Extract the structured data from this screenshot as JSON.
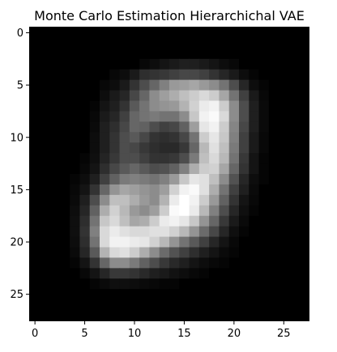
{
  "chart_data": {
    "type": "heatmap",
    "title": "Monte Carlo Estimation Hierarchichal VAE",
    "colormap": "gray",
    "value_range": [
      0,
      1
    ],
    "grid": false,
    "xlim": [
      -0.5,
      27.5
    ],
    "ylim": [
      27.5,
      -0.5
    ],
    "xticks": [
      0,
      5,
      10,
      15,
      20,
      25
    ],
    "yticks": [
      0,
      5,
      10,
      15,
      20,
      25
    ],
    "xtick_labels": [
      "0",
      "5",
      "10",
      "15",
      "20",
      "25"
    ],
    "ytick_labels": [
      "0",
      "5",
      "10",
      "15",
      "20",
      "25"
    ],
    "z": [
      [
        0,
        0,
        0,
        0,
        0,
        0,
        0,
        0,
        0,
        0,
        0,
        0,
        0,
        0,
        0,
        0,
        0,
        0,
        0,
        0,
        0,
        0,
        0,
        0,
        0,
        0,
        0,
        0
      ],
      [
        0,
        0,
        0,
        0,
        0,
        0,
        0,
        0,
        0,
        0,
        0,
        0,
        0,
        0,
        0,
        0,
        0,
        0,
        0,
        0,
        0,
        0,
        0,
        0,
        0,
        0,
        0,
        0
      ],
      [
        0,
        0,
        0,
        0,
        0,
        0,
        0,
        0,
        0,
        0,
        0,
        0,
        0,
        0,
        0,
        0,
        0,
        0,
        0,
        0,
        0,
        0,
        0,
        0,
        0,
        0,
        0,
        0
      ],
      [
        0,
        0,
        0,
        0,
        0,
        0,
        0,
        0,
        0,
        0,
        0,
        0.03,
        0.05,
        0.08,
        0.1,
        0.12,
        0.12,
        0.1,
        0.08,
        0.05,
        0.03,
        0,
        0,
        0,
        0,
        0,
        0,
        0
      ],
      [
        0,
        0,
        0,
        0,
        0,
        0,
        0,
        0,
        0.03,
        0.05,
        0.1,
        0.18,
        0.2,
        0.22,
        0.25,
        0.28,
        0.28,
        0.25,
        0.2,
        0.15,
        0.1,
        0.05,
        0.02,
        0,
        0,
        0,
        0,
        0
      ],
      [
        0,
        0,
        0,
        0,
        0,
        0,
        0,
        0.03,
        0.05,
        0.1,
        0.2,
        0.3,
        0.4,
        0.5,
        0.6,
        0.62,
        0.65,
        0.6,
        0.55,
        0.45,
        0.3,
        0.15,
        0.05,
        0.02,
        0,
        0,
        0,
        0
      ],
      [
        0,
        0,
        0,
        0,
        0,
        0,
        0,
        0.05,
        0.1,
        0.15,
        0.28,
        0.4,
        0.55,
        0.62,
        0.68,
        0.75,
        0.8,
        0.85,
        0.8,
        0.65,
        0.45,
        0.25,
        0.1,
        0.03,
        0,
        0,
        0,
        0
      ],
      [
        0,
        0,
        0,
        0,
        0,
        0,
        0.02,
        0.08,
        0.12,
        0.2,
        0.35,
        0.45,
        0.55,
        0.58,
        0.6,
        0.7,
        0.82,
        0.92,
        0.95,
        0.8,
        0.55,
        0.3,
        0.12,
        0.04,
        0,
        0,
        0,
        0
      ],
      [
        0,
        0,
        0,
        0,
        0,
        0,
        0.03,
        0.1,
        0.15,
        0.25,
        0.4,
        0.45,
        0.48,
        0.45,
        0.45,
        0.55,
        0.78,
        0.95,
        0.98,
        0.85,
        0.55,
        0.3,
        0.12,
        0.04,
        0,
        0,
        0,
        0
      ],
      [
        0,
        0,
        0,
        0,
        0,
        0,
        0.04,
        0.12,
        0.18,
        0.28,
        0.4,
        0.38,
        0.3,
        0.25,
        0.28,
        0.38,
        0.62,
        0.9,
        0.95,
        0.8,
        0.52,
        0.28,
        0.12,
        0.04,
        0,
        0,
        0,
        0
      ],
      [
        0,
        0,
        0,
        0,
        0,
        0,
        0.05,
        0.12,
        0.2,
        0.3,
        0.35,
        0.28,
        0.2,
        0.18,
        0.2,
        0.28,
        0.45,
        0.8,
        0.9,
        0.78,
        0.5,
        0.25,
        0.1,
        0.03,
        0,
        0,
        0,
        0
      ],
      [
        0,
        0,
        0,
        0,
        0,
        0,
        0.05,
        0.12,
        0.2,
        0.3,
        0.28,
        0.22,
        0.18,
        0.16,
        0.16,
        0.22,
        0.4,
        0.72,
        0.88,
        0.75,
        0.48,
        0.25,
        0.1,
        0.03,
        0,
        0,
        0,
        0
      ],
      [
        0,
        0,
        0,
        0,
        0,
        0.02,
        0.06,
        0.14,
        0.22,
        0.3,
        0.3,
        0.25,
        0.2,
        0.2,
        0.22,
        0.3,
        0.48,
        0.75,
        0.85,
        0.72,
        0.45,
        0.22,
        0.08,
        0.02,
        0,
        0,
        0,
        0
      ],
      [
        0,
        0,
        0,
        0,
        0,
        0.03,
        0.08,
        0.18,
        0.28,
        0.35,
        0.4,
        0.35,
        0.3,
        0.32,
        0.38,
        0.5,
        0.68,
        0.8,
        0.82,
        0.65,
        0.4,
        0.2,
        0.08,
        0.02,
        0,
        0,
        0,
        0
      ],
      [
        0,
        0,
        0,
        0,
        0.02,
        0.05,
        0.12,
        0.25,
        0.38,
        0.48,
        0.5,
        0.48,
        0.45,
        0.5,
        0.6,
        0.78,
        0.9,
        0.88,
        0.75,
        0.55,
        0.32,
        0.15,
        0.05,
        0.02,
        0,
        0,
        0,
        0
      ],
      [
        0,
        0,
        0,
        0,
        0.03,
        0.08,
        0.2,
        0.4,
        0.58,
        0.65,
        0.62,
        0.58,
        0.55,
        0.62,
        0.82,
        0.95,
        0.98,
        0.88,
        0.68,
        0.45,
        0.25,
        0.12,
        0.04,
        0,
        0,
        0,
        0,
        0
      ],
      [
        0,
        0,
        0,
        0,
        0.04,
        0.12,
        0.3,
        0.55,
        0.75,
        0.75,
        0.68,
        0.6,
        0.55,
        0.7,
        0.92,
        1.0,
        0.95,
        0.8,
        0.6,
        0.38,
        0.2,
        0.08,
        0.03,
        0,
        0,
        0,
        0,
        0
      ],
      [
        0,
        0,
        0,
        0,
        0.05,
        0.15,
        0.38,
        0.68,
        0.82,
        0.72,
        0.6,
        0.55,
        0.62,
        0.8,
        0.98,
        1.0,
        0.92,
        0.72,
        0.5,
        0.3,
        0.15,
        0.06,
        0.02,
        0,
        0,
        0,
        0,
        0
      ],
      [
        0,
        0,
        0,
        0,
        0.06,
        0.18,
        0.45,
        0.78,
        0.85,
        0.75,
        0.65,
        0.68,
        0.8,
        0.92,
        0.95,
        0.9,
        0.78,
        0.58,
        0.4,
        0.22,
        0.1,
        0.04,
        0,
        0,
        0,
        0,
        0,
        0
      ],
      [
        0,
        0,
        0,
        0,
        0.06,
        0.2,
        0.5,
        0.85,
        0.92,
        0.88,
        0.85,
        0.85,
        0.88,
        0.88,
        0.82,
        0.72,
        0.58,
        0.42,
        0.28,
        0.15,
        0.06,
        0.02,
        0,
        0,
        0,
        0,
        0,
        0
      ],
      [
        0,
        0,
        0,
        0,
        0.05,
        0.18,
        0.45,
        0.85,
        0.95,
        0.95,
        0.92,
        0.9,
        0.82,
        0.72,
        0.58,
        0.45,
        0.35,
        0.25,
        0.15,
        0.08,
        0.03,
        0,
        0,
        0,
        0,
        0,
        0,
        0
      ],
      [
        0,
        0,
        0,
        0,
        0.04,
        0.15,
        0.35,
        0.7,
        0.85,
        0.88,
        0.8,
        0.68,
        0.55,
        0.42,
        0.32,
        0.25,
        0.18,
        0.12,
        0.08,
        0.04,
        0.02,
        0,
        0,
        0,
        0,
        0,
        0,
        0
      ],
      [
        0,
        0,
        0,
        0,
        0.02,
        0.08,
        0.2,
        0.4,
        0.55,
        0.55,
        0.48,
        0.38,
        0.3,
        0.22,
        0.16,
        0.12,
        0.08,
        0.05,
        0.03,
        0.02,
        0,
        0,
        0,
        0,
        0,
        0,
        0,
        0
      ],
      [
        0,
        0,
        0,
        0,
        0,
        0.03,
        0.08,
        0.15,
        0.22,
        0.22,
        0.2,
        0.16,
        0.12,
        0.1,
        0.07,
        0.05,
        0.03,
        0.02,
        0,
        0,
        0,
        0,
        0,
        0,
        0,
        0,
        0,
        0
      ],
      [
        0,
        0,
        0,
        0,
        0,
        0,
        0.02,
        0.04,
        0.06,
        0.06,
        0.05,
        0.04,
        0.03,
        0.02,
        0.02,
        0,
        0,
        0,
        0,
        0,
        0,
        0,
        0,
        0,
        0,
        0,
        0,
        0
      ],
      [
        0,
        0,
        0,
        0,
        0,
        0,
        0,
        0,
        0,
        0,
        0,
        0,
        0,
        0,
        0,
        0,
        0,
        0,
        0,
        0,
        0,
        0,
        0,
        0,
        0,
        0,
        0,
        0
      ],
      [
        0,
        0,
        0,
        0,
        0,
        0,
        0,
        0,
        0,
        0,
        0,
        0,
        0,
        0,
        0,
        0,
        0,
        0,
        0,
        0,
        0,
        0,
        0,
        0,
        0,
        0,
        0,
        0
      ],
      [
        0,
        0,
        0,
        0,
        0,
        0,
        0,
        0,
        0,
        0,
        0,
        0,
        0,
        0,
        0,
        0,
        0,
        0,
        0,
        0,
        0,
        0,
        0,
        0,
        0,
        0,
        0,
        0
      ]
    ]
  }
}
